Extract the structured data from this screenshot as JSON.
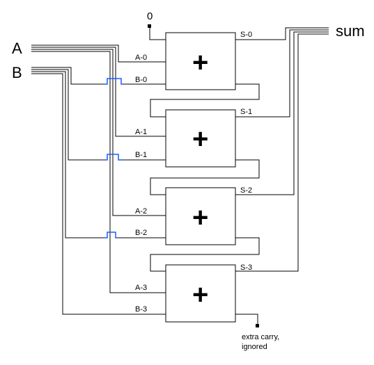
{
  "diagram": {
    "bus_a_label": "A",
    "bus_b_label": "B",
    "sum_label": "sum",
    "carry_in_value": "0",
    "adder_symbol": "+",
    "carry_out_note_line1": "extra carry,",
    "carry_out_note_line2": "ignored",
    "adders": [
      {
        "a_label": "A-0",
        "b_label": "B-0",
        "s_label": "S-0"
      },
      {
        "a_label": "A-1",
        "b_label": "B-1",
        "s_label": "S-1"
      },
      {
        "a_label": "A-2",
        "b_label": "B-2",
        "s_label": "S-2"
      },
      {
        "a_label": "A-3",
        "b_label": "B-3",
        "s_label": "S-3"
      }
    ],
    "colors": {
      "wire": "#000000",
      "crossover": "#1a5cff",
      "background": "#ffffff"
    }
  }
}
